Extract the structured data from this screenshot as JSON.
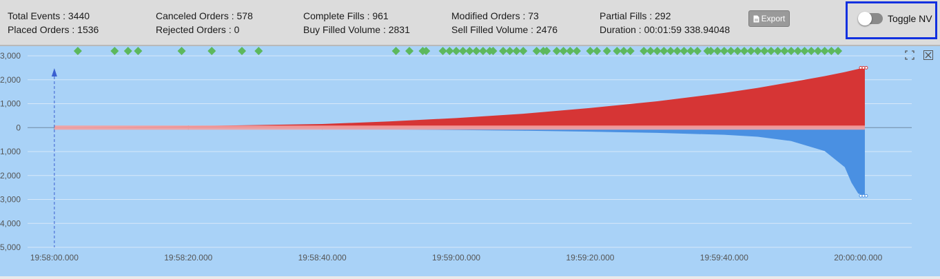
{
  "stats": {
    "total_events": "Total Events : 3440",
    "placed_orders": "Placed Orders : 1536",
    "canceled_orders": "Canceled Orders : 578",
    "rejected_orders": "Rejected Orders : 0",
    "complete_fills": "Complete Fills : 961",
    "buy_filled_volume": "Buy Filled Volume : 2831",
    "modified_orders": "Modified Orders : 73",
    "sell_filled_volume": "Sell Filled Volume : 2476",
    "partial_fills": "Partial Fills : 292",
    "duration": "Duration : 00:01:59 338.94048"
  },
  "toolbar": {
    "export_label": "Export",
    "export_icon": "file-icon",
    "toggle_label": "Toggle NV",
    "toggle_on": false
  },
  "chart_tools": [
    "expand-icon",
    "close-icon"
  ],
  "colors": {
    "sell": "#d63535",
    "buy": "#4a90e2",
    "orders": "#f4a0a0",
    "events": "#5db85d",
    "marker": "#3a5fd0",
    "background": "#a9d2f7"
  },
  "chart_data": {
    "type": "area",
    "x_tick_labels": [
      "19:58:00.000",
      "19:58:20.000",
      "19:58:40.000",
      "19:59:00.000",
      "19:59:20.000",
      "19:59:40.000",
      "20:00:00.000"
    ],
    "y_tick_labels": [
      "3,000",
      "2,000",
      "1,000",
      "0",
      "1,000",
      "2,000",
      "3,000",
      "4,000",
      "5,000"
    ],
    "y_ticks": [
      3000,
      2000,
      1000,
      0,
      -1000,
      -2000,
      -3000,
      -4000,
      -5000
    ],
    "ylim": [
      -5000,
      3000
    ],
    "x_range_seconds": [
      -4,
      128
    ],
    "start_marker_seconds": 0,
    "series": [
      {
        "key": "sell",
        "x": [
          0,
          20,
          40,
          50,
          60,
          70,
          80,
          90,
          100,
          105,
          110,
          115,
          118,
          120,
          121
        ],
        "values": [
          0,
          60,
          150,
          260,
          400,
          580,
          820,
          1100,
          1450,
          1660,
          1900,
          2150,
          2320,
          2450,
          2500
        ]
      },
      {
        "key": "buy",
        "x": [
          0,
          20,
          40,
          50,
          60,
          70,
          80,
          90,
          100,
          105,
          110,
          115,
          118,
          119,
          120,
          121
        ],
        "values": [
          0,
          -20,
          -50,
          -75,
          -100,
          -130,
          -170,
          -220,
          -300,
          -380,
          -560,
          -980,
          -1650,
          -2300,
          -2750,
          -2850
        ]
      }
    ],
    "event_markers_y": 3200,
    "event_markers_x": [
      3.5,
      9,
      11,
      12.5,
      19,
      23.5,
      28,
      30.5,
      51,
      53,
      55,
      55.5,
      58,
      59,
      60,
      61,
      62,
      63,
      64,
      65,
      65.5,
      67,
      68,
      69,
      70,
      72,
      73,
      73.5,
      75,
      76,
      77,
      78,
      80,
      81,
      82.5,
      84,
      85,
      86,
      88,
      89,
      90,
      91,
      92,
      93,
      94,
      95,
      96,
      97.5,
      98,
      99,
      100,
      101,
      102,
      103,
      104,
      105,
      106,
      107,
      108,
      109,
      110,
      111,
      112,
      113,
      114,
      115,
      116,
      117
    ]
  }
}
